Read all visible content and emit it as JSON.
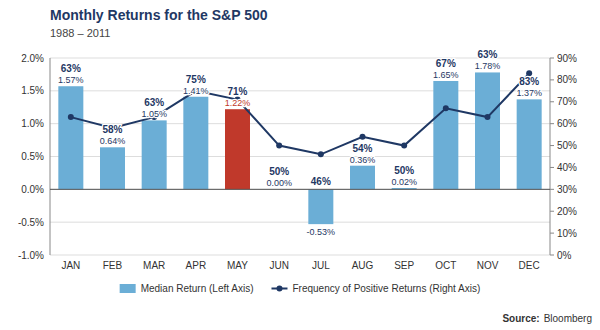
{
  "chart_data": {
    "type": "bar",
    "title": "Monthly Returns for the S&P 500",
    "subtitle": "1988 – 2011",
    "categories": [
      "JAN",
      "FEB",
      "MAR",
      "APR",
      "MAY",
      "JUN",
      "JUL",
      "AUG",
      "SEP",
      "OCT",
      "NOV",
      "DEC"
    ],
    "series": [
      {
        "name": "Median Return (Left Axis)",
        "type": "bar",
        "color": "#6baed6",
        "colors": [
          "#6baed6",
          "#6baed6",
          "#6baed6",
          "#6baed6",
          "#c0392b",
          "#6baed6",
          "#6baed6",
          "#6baed6",
          "#6baed6",
          "#6baed6",
          "#6baed6",
          "#6baed6"
        ],
        "values": [
          0.0157,
          0.0064,
          0.0105,
          0.0141,
          0.0122,
          0.0,
          -0.0053,
          0.0036,
          0.0002,
          0.0165,
          0.0178,
          0.0137
        ],
        "value_labels": [
          "1.57%",
          "0.64%",
          "1.05%",
          "1.41%",
          "1.22%",
          "0.00%",
          "-0.53%",
          "0.36%",
          "0.02%",
          "1.65%",
          "1.78%",
          "1.37%"
        ],
        "data_labels": true
      },
      {
        "name": "Frequency of Positive Returns (Right Axis)",
        "type": "line",
        "axis": "y2",
        "color": "#1f3864",
        "marker": "circle",
        "values": [
          63,
          58,
          63,
          75,
          71,
          50,
          46,
          54,
          50,
          67,
          63,
          83
        ],
        "value_labels": [
          "63%",
          "58%",
          "63%",
          "75%",
          "71%",
          "50%",
          "46%",
          "54%",
          "50%",
          "67%",
          "63%",
          "83%"
        ],
        "data_labels": true
      }
    ],
    "ylim": [
      -0.01,
      0.02
    ],
    "yticks": [
      {
        "value": -0.01,
        "label": "-1.0%"
      },
      {
        "value": -0.005,
        "label": "-0.5%"
      },
      {
        "value": 0.0,
        "label": "0.0%"
      },
      {
        "value": 0.005,
        "label": "0.5%"
      },
      {
        "value": 0.01,
        "label": "1.0%"
      },
      {
        "value": 0.015,
        "label": "1.5%"
      },
      {
        "value": 0.02,
        "label": "2.0%"
      }
    ],
    "y2lim": [
      0,
      90
    ],
    "y2ticks": [
      {
        "value": 0,
        "label": "0%"
      },
      {
        "value": 10,
        "label": "10%"
      },
      {
        "value": 20,
        "label": "20%"
      },
      {
        "value": 30,
        "label": "30%"
      },
      {
        "value": 40,
        "label": "40%"
      },
      {
        "value": 50,
        "label": "50%"
      },
      {
        "value": 60,
        "label": "60%"
      },
      {
        "value": 70,
        "label": "70%"
      },
      {
        "value": 80,
        "label": "80%"
      },
      {
        "value": 90,
        "label": "90%"
      }
    ],
    "grid": true,
    "legend": "bottom",
    "annotations": [
      "Source:",
      "Bloomberg"
    ]
  }
}
